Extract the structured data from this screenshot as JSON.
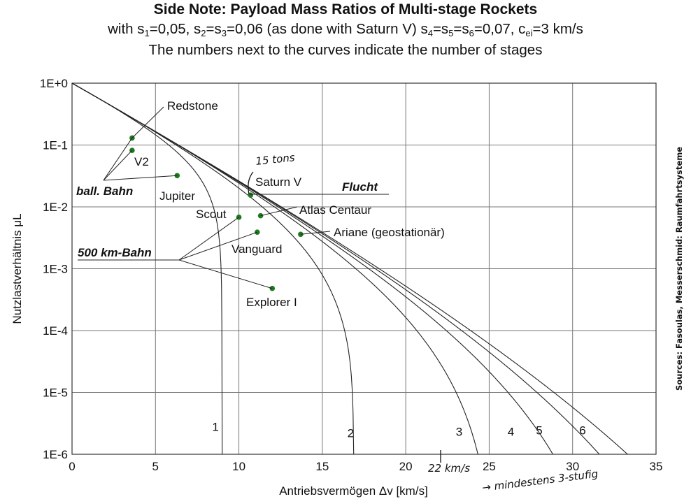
{
  "title": {
    "line1": "Side Note: Payload Mass Ratios of Multi-stage Rockets",
    "line2_parts": [
      "with s",
      "1",
      "=0,05, s",
      "2",
      "=s",
      "3",
      "=0,06 (as done with Saturn V) s",
      "4",
      "=s",
      "5",
      "=s",
      "6",
      "=0,07, c",
      "ei",
      "=3 km/s"
    ],
    "line3": "The numbers next to the curves indicate the number of stages"
  },
  "source": "Sources: Fasoulas, Messerschmid: Raumfahrtsysteme",
  "colors": {
    "point": "#1f7a1f",
    "curve": "#222222",
    "grid": "#888888"
  },
  "chart_data": {
    "type": "line",
    "xlabel": "Antriebsvermögen Δv [km/s]",
    "ylabel": "Nutzlastverhältnis μL",
    "xlim": [
      0,
      35
    ],
    "ylim": [
      1e-06,
      1
    ],
    "yscale": "log",
    "grid": true,
    "x_ticks": [
      "0",
      "5",
      "10",
      "15",
      "20",
      "25",
      "30",
      "35"
    ],
    "y_ticks": [
      "1E-6",
      "1E-5",
      "1E-4",
      "1E-3",
      "1E-2",
      "1E-1",
      "1E+0"
    ],
    "series": [
      {
        "name": "1",
        "stages": 1,
        "s": [
          0.05
        ],
        "ce": 3
      },
      {
        "name": "2",
        "stages": 2,
        "s": [
          0.05,
          0.06
        ],
        "ce": 3
      },
      {
        "name": "3",
        "stages": 3,
        "s": [
          0.05,
          0.06,
          0.06
        ],
        "ce": 3
      },
      {
        "name": "4",
        "stages": 4,
        "s": [
          0.05,
          0.06,
          0.06,
          0.07
        ],
        "ce": 3
      },
      {
        "name": "5",
        "stages": 5,
        "s": [
          0.05,
          0.06,
          0.06,
          0.07,
          0.07
        ],
        "ce": 3
      },
      {
        "name": "6",
        "stages": 6,
        "s": [
          0.05,
          0.06,
          0.06,
          0.07,
          0.07,
          0.07
        ],
        "ce": 3
      }
    ],
    "curve_labels": [
      {
        "text": "1",
        "x": 8.6,
        "y": 2.4e-06
      },
      {
        "text": "2",
        "x": 16.7,
        "y": 1.9e-06
      },
      {
        "text": "3",
        "x": 23.2,
        "y": 2e-06
      },
      {
        "text": "4",
        "x": 26.3,
        "y": 2e-06
      },
      {
        "text": "5",
        "x": 28.0,
        "y": 2.1e-06
      },
      {
        "text": "6",
        "x": 30.6,
        "y": 2.1e-06
      }
    ],
    "points": [
      {
        "name": "Redstone",
        "x": 3.6,
        "y": 0.13
      },
      {
        "name": "V2",
        "x": 3.6,
        "y": 0.082
      },
      {
        "name": "Jupiter",
        "x": 6.3,
        "y": 0.032
      },
      {
        "name": "Saturn V",
        "x": 10.7,
        "y": 0.0155
      },
      {
        "name": "Scout",
        "x": 10.0,
        "y": 0.0068
      },
      {
        "name": "Atlas Centaur",
        "x": 11.3,
        "y": 0.0072
      },
      {
        "name": "Vanguard",
        "x": 11.1,
        "y": 0.0039
      },
      {
        "name": "Ariane (geostationär)",
        "x": 13.7,
        "y": 0.0036
      },
      {
        "name": "Explorer I",
        "x": 12.0,
        "y": 0.00048
      }
    ],
    "annotations": {
      "ball_bahn": "ball. Bahn",
      "flucht": "Flucht",
      "km500": "500 km-Bahn",
      "hand_15tons": "15 tons",
      "hand_22kms": "22 km/s",
      "hand_mindestens": "→ mindestens 3-stufig"
    }
  }
}
